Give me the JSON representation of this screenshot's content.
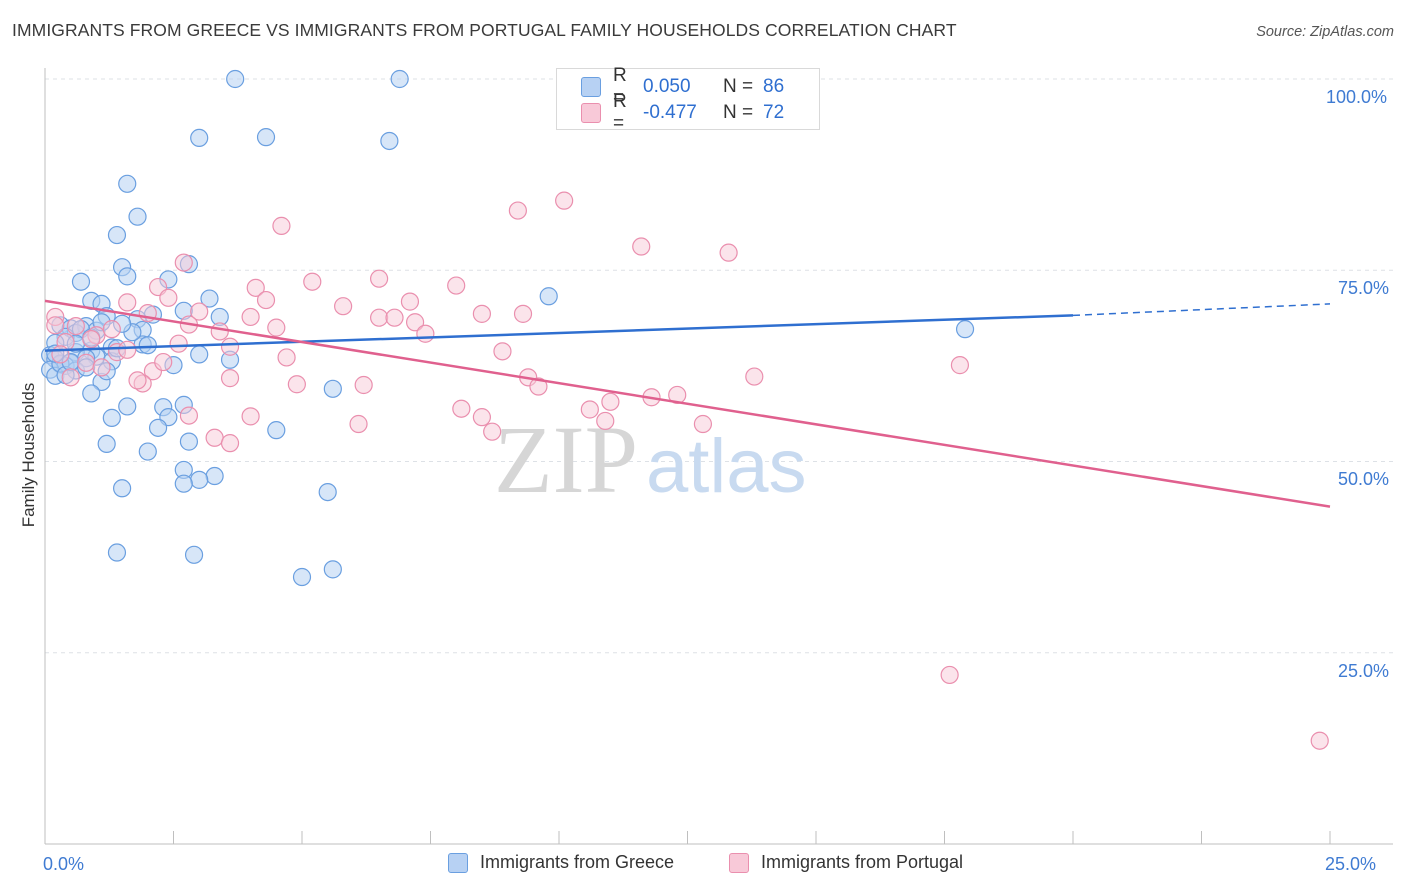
{
  "header": {
    "title": "IMMIGRANTS FROM GREECE VS IMMIGRANTS FROM PORTUGAL FAMILY HOUSEHOLDS CORRELATION CHART",
    "source": "Source: ZipAtlas.com"
  },
  "watermark": {
    "zip": "ZIP",
    "atlas": "atlas"
  },
  "legend": {
    "greece": {
      "r_label": "R =",
      "r_value": "0.050",
      "n_label": "N =",
      "n_value": "86"
    },
    "portugal": {
      "r_label": "R =",
      "r_value": "-0.477",
      "n_label": "N =",
      "n_value": "72"
    }
  },
  "colors": {
    "greece_fill": "#b7d1f3",
    "greece_stroke": "#6a9fe0",
    "greece_line": "#2f6fd0",
    "portugal_fill": "#f8c9d8",
    "portugal_stroke": "#ea8fae",
    "portugal_line": "#e0608e",
    "tick_label": "#3f7bd2",
    "grid": "#dde1e6"
  },
  "chart_data": {
    "type": "scatter",
    "title": "IMMIGRANTS FROM GREECE VS IMMIGRANTS FROM PORTUGAL FAMILY HOUSEHOLDS CORRELATION CHART",
    "xlabel": "",
    "ylabel": "Family Households",
    "xlim": [
      0,
      25
    ],
    "ylim": [
      0,
      100
    ],
    "x_tick_labels": [
      "0.0%",
      "25.0%"
    ],
    "y_tick_labels": [
      "100.0%",
      "75.0%",
      "50.0%",
      "25.0%"
    ],
    "y_ticks": [
      100,
      75,
      50,
      25
    ],
    "grid": true,
    "legend_position": "bottom",
    "series": [
      {
        "name": "Immigrants from Greece",
        "r": 0.05,
        "n": 86,
        "trend": {
          "x": [
            0,
            20
          ],
          "y": [
            64.5,
            69.1
          ],
          "dashed_to_x": 25,
          "dashed_to_y": 70.6
        },
        "points": [
          [
            3.7,
            100.0
          ],
          [
            6.9,
            100.0
          ],
          [
            3.0,
            92.3
          ],
          [
            4.3,
            92.4
          ],
          [
            6.7,
            91.9
          ],
          [
            1.6,
            86.3
          ],
          [
            1.8,
            82.0
          ],
          [
            1.4,
            79.6
          ],
          [
            1.5,
            75.4
          ],
          [
            2.8,
            75.8
          ],
          [
            1.6,
            74.2
          ],
          [
            0.7,
            73.5
          ],
          [
            2.4,
            73.8
          ],
          [
            9.8,
            71.6
          ],
          [
            0.9,
            71.0
          ],
          [
            1.1,
            70.6
          ],
          [
            3.2,
            71.3
          ],
          [
            2.1,
            69.2
          ],
          [
            1.8,
            68.6
          ],
          [
            2.7,
            69.7
          ],
          [
            3.4,
            68.9
          ],
          [
            1.2,
            69.0
          ],
          [
            0.3,
            67.8
          ],
          [
            0.5,
            67.4
          ],
          [
            0.8,
            67.7
          ],
          [
            1.0,
            67.1
          ],
          [
            1.9,
            67.2
          ],
          [
            0.6,
            66.8
          ],
          [
            0.4,
            66.3
          ],
          [
            0.2,
            65.5
          ],
          [
            1.9,
            65.3
          ],
          [
            1.3,
            64.9
          ],
          [
            0.9,
            64.5
          ],
          [
            0.6,
            64.3
          ],
          [
            0.1,
            63.9
          ],
          [
            0.2,
            63.4
          ],
          [
            0.5,
            62.9
          ],
          [
            0.3,
            62.7
          ],
          [
            1.0,
            63.7
          ],
          [
            0.8,
            63.5
          ],
          [
            0.4,
            62.5
          ],
          [
            1.3,
            63.1
          ],
          [
            3.6,
            63.3
          ],
          [
            0.1,
            62.0
          ],
          [
            0.6,
            61.9
          ],
          [
            0.2,
            61.2
          ],
          [
            1.1,
            60.4
          ],
          [
            0.9,
            58.9
          ],
          [
            5.6,
            59.5
          ],
          [
            2.7,
            57.4
          ],
          [
            2.3,
            57.1
          ],
          [
            1.6,
            57.2
          ],
          [
            1.3,
            55.7
          ],
          [
            2.4,
            55.8
          ],
          [
            4.5,
            54.1
          ],
          [
            2.2,
            54.4
          ],
          [
            2.8,
            52.6
          ],
          [
            1.2,
            52.3
          ],
          [
            2.0,
            51.3
          ],
          [
            2.7,
            48.9
          ],
          [
            3.3,
            48.1
          ],
          [
            3.0,
            47.6
          ],
          [
            2.7,
            47.1
          ],
          [
            5.5,
            46.0
          ],
          [
            1.5,
            46.5
          ],
          [
            1.4,
            38.1
          ],
          [
            2.9,
            37.8
          ],
          [
            5.6,
            35.9
          ],
          [
            5.0,
            34.9
          ],
          [
            17.9,
            67.3
          ],
          [
            0.3,
            62.8
          ],
          [
            0.7,
            67.3
          ],
          [
            1.1,
            68.2
          ],
          [
            0.4,
            61.3
          ],
          [
            2.0,
            65.2
          ],
          [
            1.4,
            64.8
          ],
          [
            0.9,
            66.2
          ],
          [
            0.5,
            63.0
          ],
          [
            1.7,
            66.9
          ],
          [
            0.2,
            64.1
          ],
          [
            0.6,
            65.4
          ],
          [
            2.5,
            62.6
          ],
          [
            1.2,
            61.8
          ],
          [
            0.8,
            62.3
          ],
          [
            3.0,
            64.0
          ],
          [
            1.5,
            68.0
          ]
        ]
      },
      {
        "name": "Immigrants from Portugal",
        "r": -0.477,
        "n": 72,
        "trend": {
          "x": [
            0,
            25
          ],
          "y": [
            71.0,
            44.1
          ]
        },
        "points": [
          [
            10.1,
            84.1
          ],
          [
            9.2,
            82.8
          ],
          [
            4.6,
            80.8
          ],
          [
            11.6,
            78.1
          ],
          [
            13.3,
            77.3
          ],
          [
            2.7,
            76.0
          ],
          [
            6.5,
            73.9
          ],
          [
            5.2,
            73.5
          ],
          [
            8.0,
            73.0
          ],
          [
            2.2,
            72.8
          ],
          [
            4.1,
            72.7
          ],
          [
            2.4,
            71.4
          ],
          [
            4.3,
            71.1
          ],
          [
            7.1,
            70.9
          ],
          [
            1.6,
            70.8
          ],
          [
            5.8,
            70.3
          ],
          [
            8.5,
            69.3
          ],
          [
            3.0,
            69.6
          ],
          [
            9.3,
            69.3
          ],
          [
            0.2,
            68.9
          ],
          [
            2.0,
            69.4
          ],
          [
            4.0,
            68.9
          ],
          [
            6.5,
            68.8
          ],
          [
            7.2,
            68.2
          ],
          [
            6.8,
            68.8
          ],
          [
            0.6,
            67.7
          ],
          [
            2.8,
            67.9
          ],
          [
            4.5,
            67.5
          ],
          [
            7.4,
            66.7
          ],
          [
            3.4,
            67.0
          ],
          [
            1.0,
            66.5
          ],
          [
            2.6,
            65.4
          ],
          [
            3.6,
            65.0
          ],
          [
            0.4,
            65.6
          ],
          [
            1.4,
            64.3
          ],
          [
            8.9,
            64.4
          ],
          [
            4.7,
            63.6
          ],
          [
            1.6,
            64.6
          ],
          [
            0.8,
            62.9
          ],
          [
            17.8,
            62.6
          ],
          [
            2.1,
            61.8
          ],
          [
            9.4,
            61.0
          ],
          [
            13.8,
            61.1
          ],
          [
            3.6,
            60.9
          ],
          [
            1.9,
            60.2
          ],
          [
            4.9,
            60.1
          ],
          [
            6.2,
            60.0
          ],
          [
            1.8,
            60.6
          ],
          [
            9.6,
            59.8
          ],
          [
            12.3,
            58.7
          ],
          [
            11.8,
            58.4
          ],
          [
            11.0,
            57.8
          ],
          [
            8.1,
            56.9
          ],
          [
            10.6,
            56.8
          ],
          [
            8.5,
            55.8
          ],
          [
            4.0,
            55.9
          ],
          [
            2.8,
            56.0
          ],
          [
            6.1,
            54.9
          ],
          [
            12.8,
            54.9
          ],
          [
            10.9,
            55.3
          ],
          [
            8.7,
            53.9
          ],
          [
            3.3,
            53.1
          ],
          [
            3.6,
            52.4
          ],
          [
            0.2,
            67.8
          ],
          [
            1.3,
            67.3
          ],
          [
            0.9,
            66.0
          ],
          [
            2.3,
            63.0
          ],
          [
            1.1,
            62.3
          ],
          [
            0.5,
            61.0
          ],
          [
            0.3,
            64.0
          ],
          [
            17.6,
            22.1
          ],
          [
            24.8,
            13.5
          ]
        ]
      }
    ]
  },
  "bottom_legend": {
    "greece_label": "Immigrants from Greece",
    "portugal_label": "Immigrants from Portugal"
  }
}
